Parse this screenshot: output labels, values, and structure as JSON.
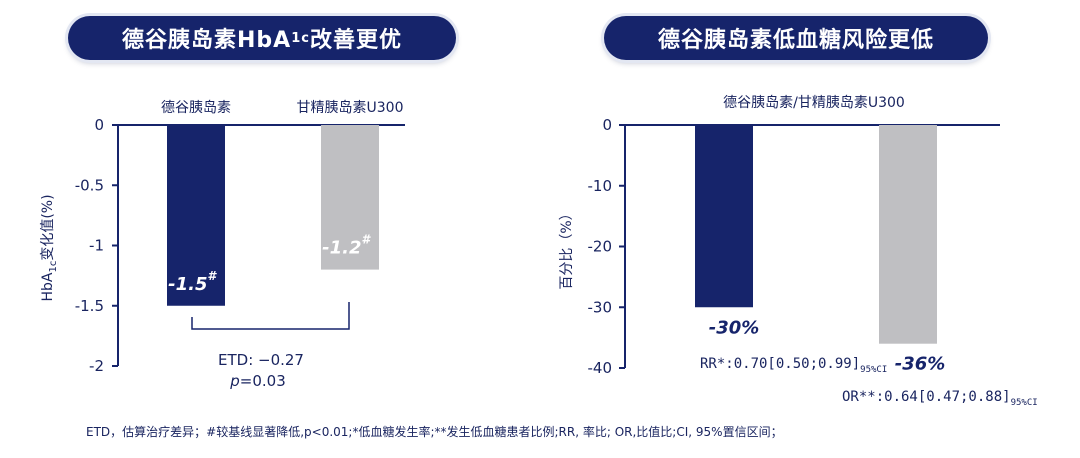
{
  "left_panel": {
    "title_main": "德谷胰岛素HbA",
    "title_sub": "1c",
    "title_tail": " 改善更优"
  },
  "right_panel": {
    "title": "德谷胰岛素低血糖风险更低"
  },
  "colors": {
    "navy": "#16246b",
    "gray": "#bfbfc2",
    "text": "#1a2560"
  },
  "chart_data": [
    {
      "type": "bar",
      "categories": [
        "德谷胰岛素",
        "甘精胰岛素U300"
      ],
      "values": [
        -1.5,
        -1.2
      ],
      "ylim": [
        -2,
        0
      ],
      "yticks": [
        "0",
        "-0.5",
        "-1",
        "-1.5",
        "-2"
      ],
      "ylabel_main": "HbA",
      "ylabel_sub": "1c",
      "ylabel_tail": "变化值(%)",
      "data_labels": [
        "-1.5",
        "-1.2"
      ],
      "data_label_mark": "#",
      "etd_line1": "ETD: −0.27",
      "etd_p": "p",
      "etd_line2": "=0.03"
    },
    {
      "type": "bar",
      "header": "德谷胰岛素/甘精胰岛素U300",
      "categories": [
        "RR",
        "OR"
      ],
      "values": [
        -30,
        -36
      ],
      "ylim": [
        -40,
        0
      ],
      "yticks": [
        "0",
        "-10",
        "-20",
        "-30",
        "-40"
      ],
      "ylabel": "百分比（%）",
      "data_labels": [
        "-30%",
        "-36%"
      ],
      "rr_text": "RR*:0.70[0.50;0.99]",
      "or_text": "OR**:0.64[0.47;0.88]",
      "ci_sub": "95%CI"
    }
  ],
  "footnote": "ETD，估算治疗差异；#较基线显著降低,p<0.01;*低血糖发生率;**发生低血糖患者比例;RR, 率比; OR,比值比;CI, 95%置信区间；"
}
